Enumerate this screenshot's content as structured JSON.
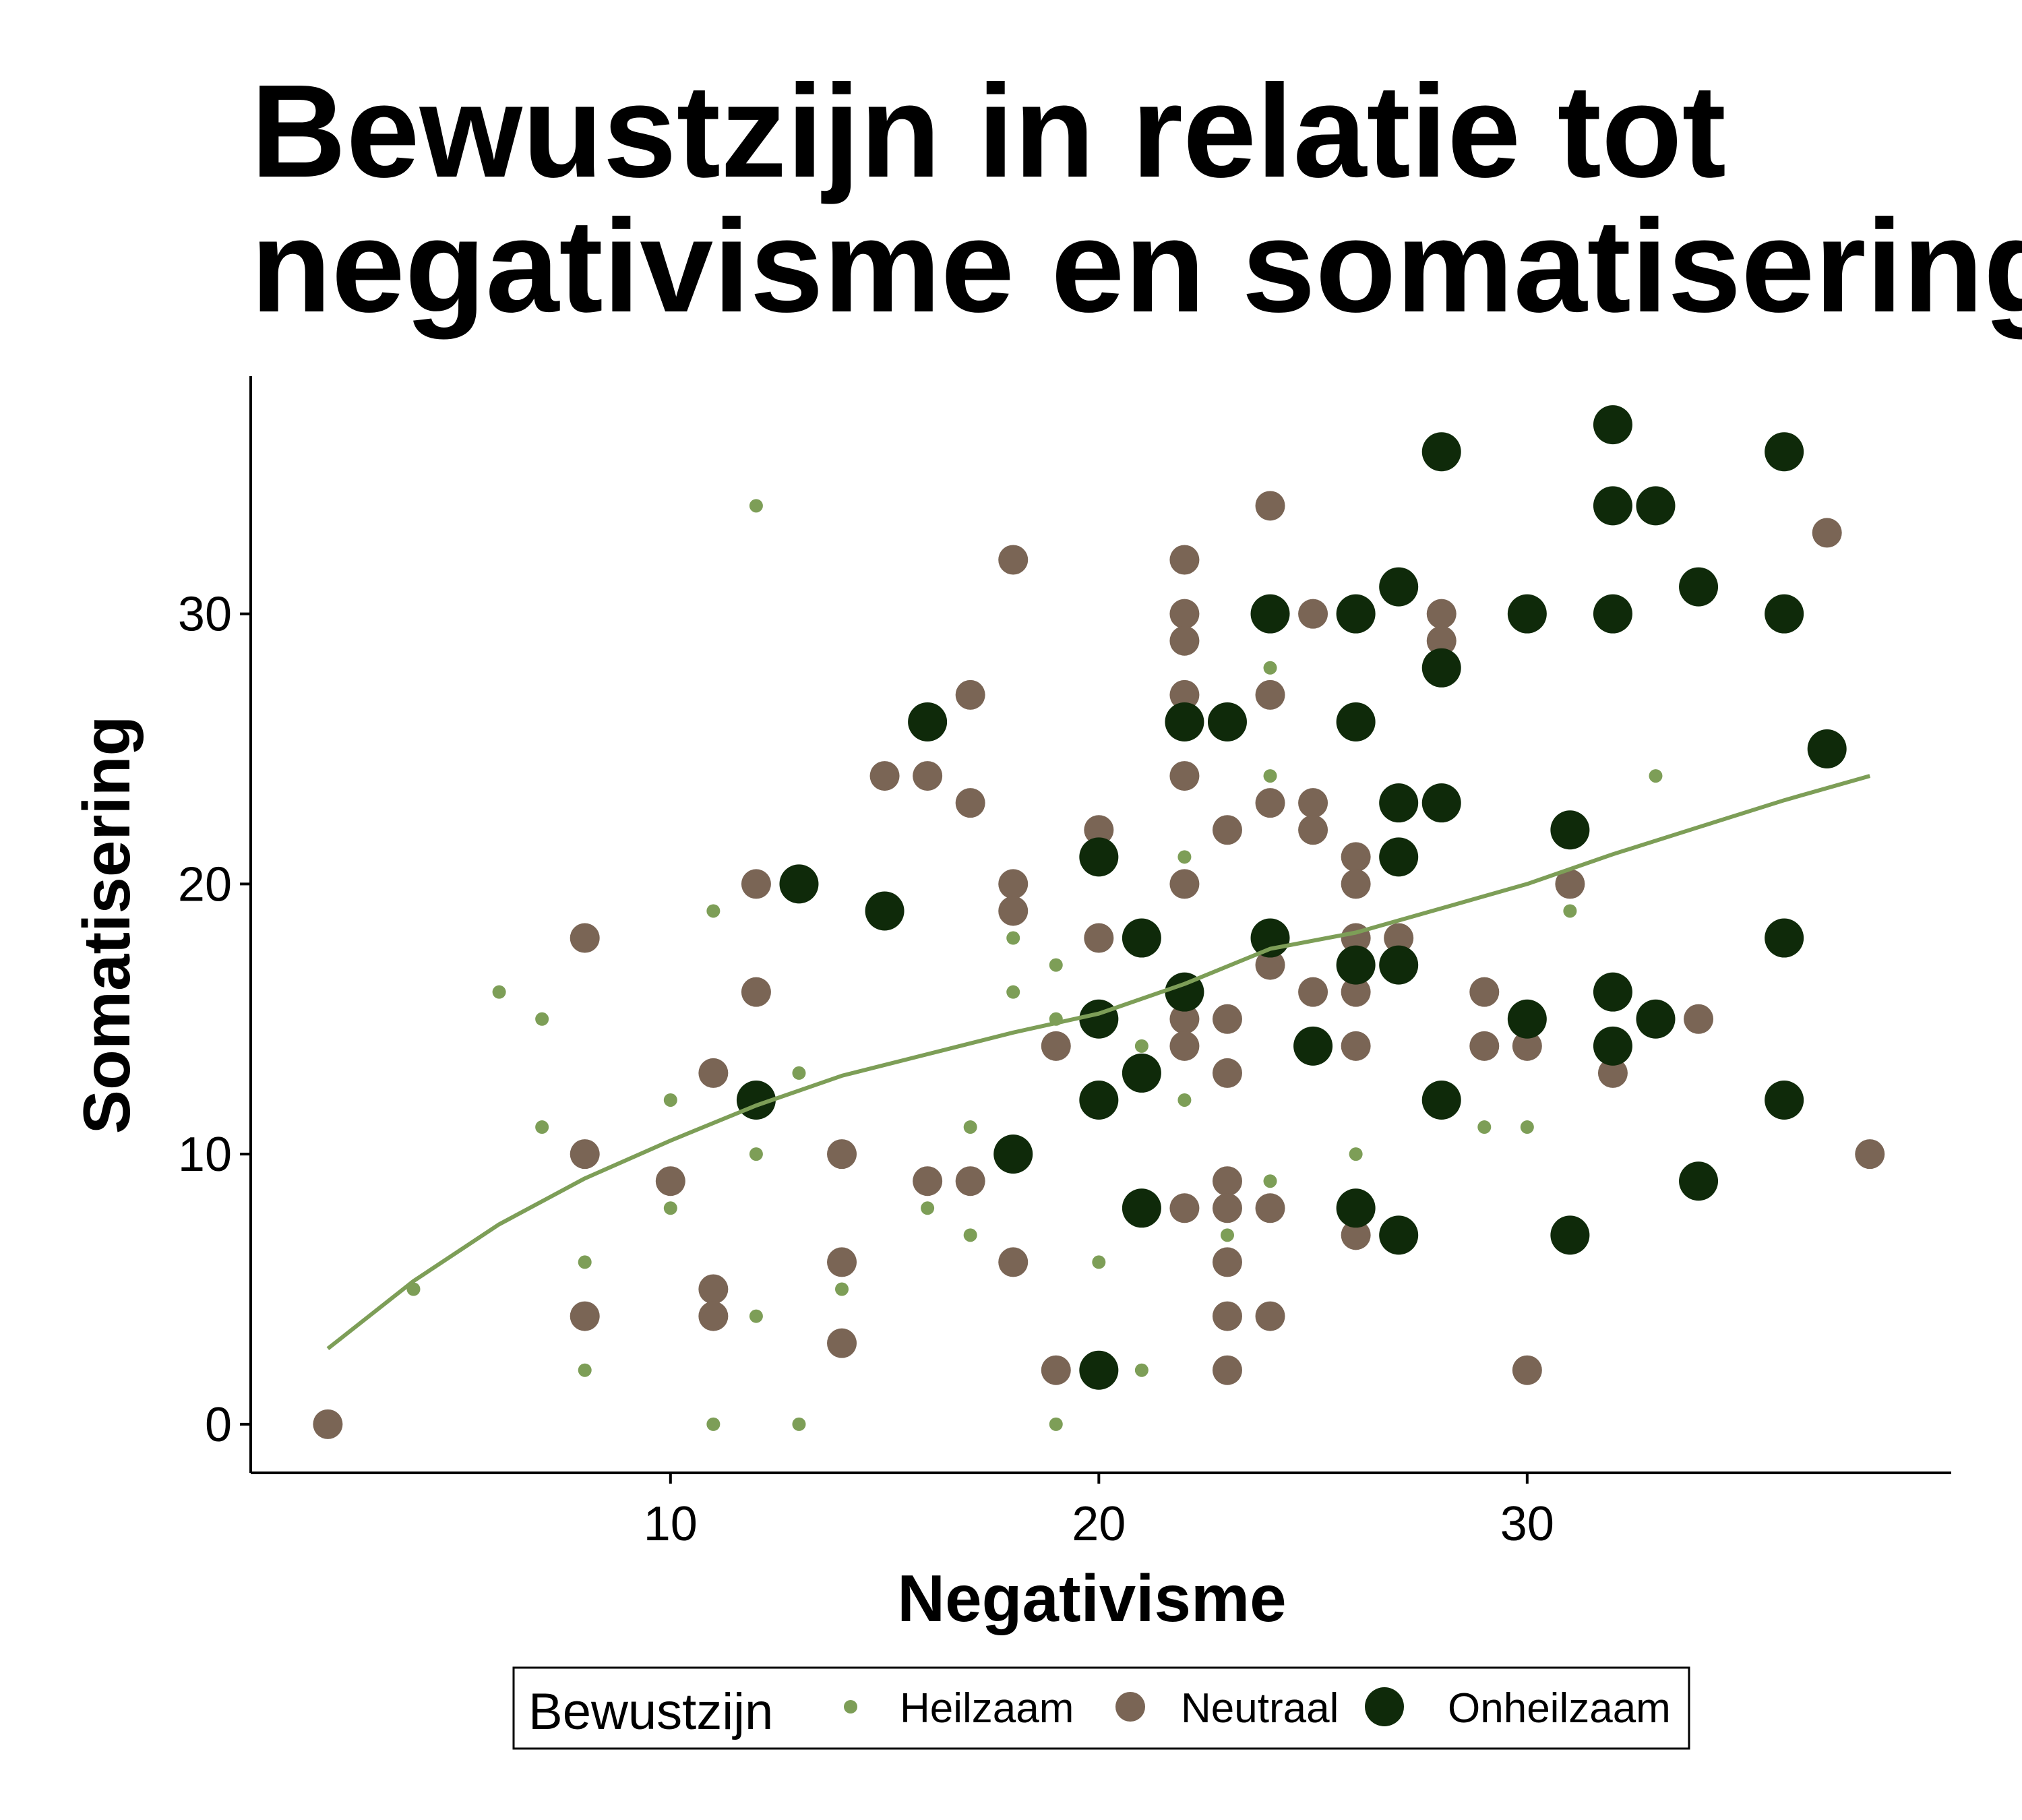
{
  "chart_data": {
    "type": "scatter",
    "title_lines": [
      "Bewustzijn in relatie tot",
      "negativisme en somatisering"
    ],
    "xlabel": "Negativisme",
    "ylabel": "Somatisering",
    "xlim": [
      0.2,
      39.9
    ],
    "ylim": [
      -1.8,
      38.8
    ],
    "x_ticks": [
      10,
      20,
      30
    ],
    "y_ticks": [
      0,
      10,
      20,
      30
    ],
    "x_tick_labels": [
      "10",
      "20",
      "30"
    ],
    "y_tick_labels": [
      "0",
      "10",
      "20",
      "30"
    ],
    "grid": false,
    "legend": {
      "title": "Bewustzijn",
      "placement": "bottom",
      "entries": [
        "Heilzaam",
        "Neutraal",
        "Onheilzaam"
      ]
    },
    "series": [
      {
        "name": "Heilzaam",
        "color": "#7d9e57",
        "size_rank": 1,
        "points": [
          [
            4,
            5
          ],
          [
            6,
            16
          ],
          [
            7,
            15
          ],
          [
            7,
            11
          ],
          [
            8,
            6
          ],
          [
            8,
            2
          ],
          [
            10,
            12
          ],
          [
            10,
            8
          ],
          [
            11,
            19
          ],
          [
            11,
            0
          ],
          [
            12,
            34
          ],
          [
            12,
            10
          ],
          [
            12,
            4
          ],
          [
            13,
            13
          ],
          [
            13,
            0
          ],
          [
            14,
            5
          ],
          [
            16,
            8
          ],
          [
            17,
            11
          ],
          [
            17,
            7
          ],
          [
            18,
            18
          ],
          [
            18,
            16
          ],
          [
            18,
            10
          ],
          [
            19,
            17
          ],
          [
            19,
            15
          ],
          [
            19,
            0
          ],
          [
            20,
            18
          ],
          [
            20,
            6
          ],
          [
            21,
            14
          ],
          [
            21,
            2
          ],
          [
            22,
            21
          ],
          [
            22,
            12
          ],
          [
            23,
            7
          ],
          [
            24,
            28
          ],
          [
            24,
            24
          ],
          [
            24,
            9
          ],
          [
            25,
            14
          ],
          [
            26,
            10
          ],
          [
            29,
            11
          ],
          [
            30,
            11
          ],
          [
            31,
            19
          ],
          [
            33,
            24
          ]
        ]
      },
      {
        "name": "Neutraal",
        "color": "#7a6555",
        "size_rank": 2,
        "points": [
          [
            2,
            0
          ],
          [
            8,
            18
          ],
          [
            8,
            10
          ],
          [
            8,
            4
          ],
          [
            10,
            9
          ],
          [
            11,
            13
          ],
          [
            11,
            5
          ],
          [
            11,
            4
          ],
          [
            12,
            20
          ],
          [
            12,
            16
          ],
          [
            14,
            10
          ],
          [
            14,
            6
          ],
          [
            14,
            3
          ],
          [
            15,
            24
          ],
          [
            15,
            19
          ],
          [
            16,
            24
          ],
          [
            16,
            9
          ],
          [
            17,
            27
          ],
          [
            17,
            23
          ],
          [
            17,
            9
          ],
          [
            18,
            32
          ],
          [
            18,
            20
          ],
          [
            18,
            19
          ],
          [
            18,
            6
          ],
          [
            19,
            14
          ],
          [
            19,
            2
          ],
          [
            20,
            22
          ],
          [
            20,
            18
          ],
          [
            21,
            13
          ],
          [
            22,
            32
          ],
          [
            22,
            30
          ],
          [
            22,
            29
          ],
          [
            22,
            27
          ],
          [
            22,
            24
          ],
          [
            22,
            20
          ],
          [
            22,
            15
          ],
          [
            22,
            14
          ],
          [
            22,
            8
          ],
          [
            23,
            22
          ],
          [
            23,
            15
          ],
          [
            23,
            13
          ],
          [
            23,
            9
          ],
          [
            23,
            8
          ],
          [
            23,
            6
          ],
          [
            23,
            4
          ],
          [
            23,
            2
          ],
          [
            24,
            34
          ],
          [
            24,
            27
          ],
          [
            24,
            23
          ],
          [
            24,
            17
          ],
          [
            24,
            8
          ],
          [
            24,
            4
          ],
          [
            25,
            30
          ],
          [
            25,
            23
          ],
          [
            25,
            22
          ],
          [
            25,
            16
          ],
          [
            26,
            21
          ],
          [
            26,
            20
          ],
          [
            26,
            18
          ],
          [
            26,
            16
          ],
          [
            26,
            14
          ],
          [
            26,
            8
          ],
          [
            26,
            7
          ],
          [
            27,
            18
          ],
          [
            28,
            30
          ],
          [
            28,
            29
          ],
          [
            29,
            16
          ],
          [
            29,
            14
          ],
          [
            30,
            14
          ],
          [
            30,
            2
          ],
          [
            31,
            20
          ],
          [
            32,
            37
          ],
          [
            32,
            13
          ],
          [
            34,
            15
          ],
          [
            37,
            33
          ],
          [
            38,
            10
          ]
        ]
      },
      {
        "name": "Onheilzaam",
        "color": "#0f2a0a",
        "size_rank": 3,
        "points": [
          [
            12,
            12
          ],
          [
            13,
            20
          ],
          [
            15,
            19
          ],
          [
            16,
            26
          ],
          [
            18,
            10
          ],
          [
            20,
            21
          ],
          [
            20,
            15
          ],
          [
            20,
            12
          ],
          [
            20,
            2
          ],
          [
            21,
            18
          ],
          [
            21,
            13
          ],
          [
            21,
            8
          ],
          [
            22,
            26
          ],
          [
            22,
            16
          ],
          [
            23,
            26
          ],
          [
            24,
            30
          ],
          [
            24,
            18
          ],
          [
            25,
            14
          ],
          [
            26,
            30
          ],
          [
            26,
            26
          ],
          [
            26,
            17
          ],
          [
            26,
            8
          ],
          [
            27,
            31
          ],
          [
            27,
            23
          ],
          [
            27,
            21
          ],
          [
            27,
            17
          ],
          [
            27,
            7
          ],
          [
            28,
            36
          ],
          [
            28,
            28
          ],
          [
            28,
            23
          ],
          [
            28,
            12
          ],
          [
            30,
            30
          ],
          [
            30,
            15
          ],
          [
            31,
            22
          ],
          [
            31,
            7
          ],
          [
            32,
            37
          ],
          [
            32,
            34
          ],
          [
            32,
            30
          ],
          [
            32,
            16
          ],
          [
            32,
            14
          ],
          [
            33,
            34
          ],
          [
            33,
            15
          ],
          [
            34,
            31
          ],
          [
            34,
            9
          ],
          [
            36,
            36
          ],
          [
            36,
            30
          ],
          [
            36,
            18
          ],
          [
            36,
            12
          ],
          [
            37,
            25
          ]
        ]
      }
    ],
    "smooth_line": {
      "color": "#7d9e57",
      "points": [
        [
          2,
          2.8
        ],
        [
          4,
          5.3
        ],
        [
          6,
          7.4
        ],
        [
          8,
          9.1
        ],
        [
          10,
          10.5
        ],
        [
          12,
          11.8
        ],
        [
          14,
          12.9
        ],
        [
          16,
          13.7
        ],
        [
          18,
          14.5
        ],
        [
          20,
          15.2
        ],
        [
          22,
          16.3
        ],
        [
          24,
          17.6
        ],
        [
          26,
          18.2
        ],
        [
          28,
          19.1
        ],
        [
          30,
          20.0
        ],
        [
          32,
          21.1
        ],
        [
          34,
          22.1
        ],
        [
          36,
          23.1
        ],
        [
          38,
          24.0
        ]
      ]
    }
  }
}
